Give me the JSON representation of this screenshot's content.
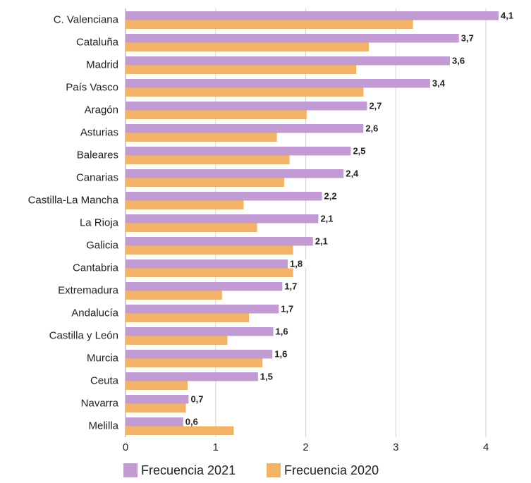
{
  "chart_data": {
    "type": "bar",
    "orientation": "horizontal",
    "categories": [
      "C. Valenciana",
      "Cataluña",
      "Madrid",
      "País Vasco",
      "Aragón",
      "Asturias",
      "Baleares",
      "Canarias",
      "Castilla-La Mancha",
      "La Rioja",
      "Galicia",
      "Cantabria",
      "Extremadura",
      "Andalucía",
      "Castilla y León",
      "Murcia",
      "Ceuta",
      "Navarra",
      "Melilla"
    ],
    "series": [
      {
        "name": "Frecuencia 2021",
        "color": "#c39bd3",
        "values": [
          4.14,
          3.7,
          3.6,
          3.38,
          2.68,
          2.64,
          2.5,
          2.42,
          2.18,
          2.14,
          2.08,
          1.8,
          1.74,
          1.7,
          1.64,
          1.63,
          1.47,
          0.7,
          0.64
        ],
        "value_labels": [
          "4,1",
          "3,7",
          "3,6",
          "3,4",
          "2,7",
          "2,6",
          "2,5",
          "2,4",
          "2,2",
          "2,1",
          "2,1",
          "1,8",
          "1,7",
          "1,7",
          "1,6",
          "1,6",
          "1,5",
          "0,7",
          "0,6"
        ]
      },
      {
        "name": "Frecuencia 2020",
        "color": "#f2b366",
        "values": [
          3.19,
          2.7,
          2.56,
          2.64,
          2.01,
          1.68,
          1.82,
          1.76,
          1.31,
          1.46,
          1.86,
          1.86,
          1.07,
          1.37,
          1.13,
          1.52,
          0.69,
          0.67,
          1.2
        ]
      }
    ],
    "xlim": [
      0,
      4.5
    ],
    "xticks": [
      0,
      1,
      2,
      3,
      4
    ],
    "grid": true,
    "legend": "bottom"
  }
}
